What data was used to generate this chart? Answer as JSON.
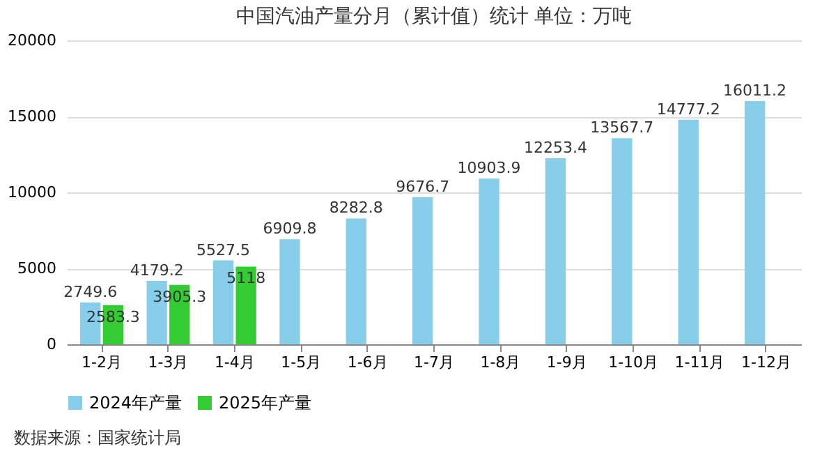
{
  "chart_data": {
    "type": "bar",
    "title": "中国汽油产量分月（累计值）统计 单位：万吨",
    "categories": [
      "1-2月",
      "1-3月",
      "1-4月",
      "1-5月",
      "1-6月",
      "1-7月",
      "1-8月",
      "1-9月",
      "1-10月",
      "1-11月",
      "1-12月"
    ],
    "series": [
      {
        "name": "2024年产量",
        "color": "#87ceeb",
        "values": [
          2749.6,
          4179.2,
          5527.5,
          6909.8,
          8282.8,
          9676.7,
          10903.9,
          12253.4,
          13567.7,
          14777.2,
          16011.2
        ]
      },
      {
        "name": "2025年产量",
        "color": "#33cc33",
        "values": [
          2583.3,
          3905.3,
          5118,
          null,
          null,
          null,
          null,
          null,
          null,
          null,
          null
        ]
      }
    ],
    "ylim": [
      0,
      20000
    ],
    "yticks": [
      0,
      5000,
      10000,
      15000,
      20000
    ],
    "grid": "y",
    "legend": "bottom",
    "data_labels": true,
    "annotations": [
      "数据来源：国家统计局"
    ]
  }
}
